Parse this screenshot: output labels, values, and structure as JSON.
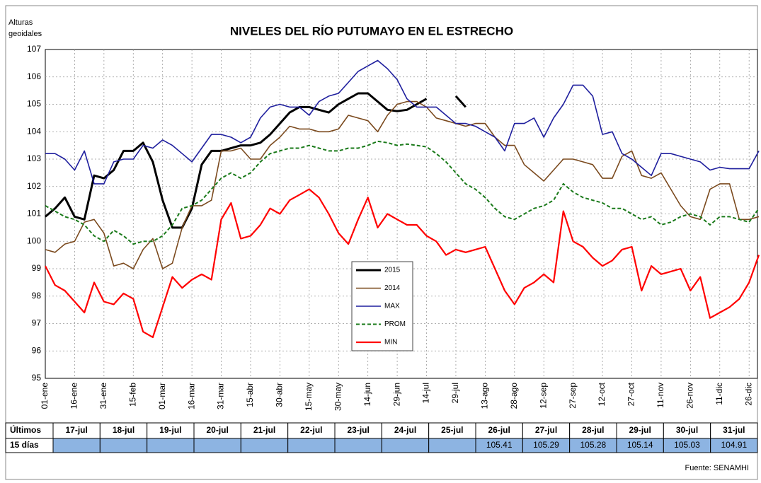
{
  "chart_data": {
    "type": "line",
    "title": "NIVELES DEL RÍO PUTUMAYO EN EL ESTRECHO",
    "ylabel": [
      "Alturas",
      "geoidales"
    ],
    "ylim": [
      95,
      107
    ],
    "yticks": [
      95,
      96,
      97,
      98,
      99,
      100,
      101,
      102,
      103,
      104,
      105,
      106,
      107
    ],
    "grid": true,
    "legend": "center",
    "categories": [
      "01-ene",
      null,
      null,
      "16-ene",
      null,
      null,
      "31-ene",
      null,
      null,
      "15-feb",
      null,
      null,
      "01-mar",
      null,
      null,
      "16-mar",
      null,
      null,
      "31-mar",
      null,
      null,
      "15-abr",
      null,
      null,
      "30-abr",
      null,
      null,
      "15-may",
      null,
      null,
      "30-may",
      null,
      null,
      "14-jun",
      null,
      null,
      "29-jun",
      null,
      null,
      "14-jul",
      null,
      null,
      "29-jul",
      null,
      null,
      "13-ago",
      null,
      null,
      "28-ago",
      null,
      null,
      "12-sep",
      null,
      null,
      "27-sep",
      null,
      null,
      "12-oct",
      null,
      null,
      "27-oct",
      null,
      null,
      "11-nov",
      null,
      null,
      "26-nov",
      null,
      null,
      "11-dic",
      null,
      null,
      "26-dic",
      null
    ],
    "series": [
      {
        "name": "2015",
        "color": "#000000",
        "style": "solid",
        "values": [
          100.9,
          101.2,
          101.6,
          100.9,
          100.8,
          102.4,
          102.3,
          102.6,
          103.3,
          103.3,
          103.6,
          102.9,
          101.5,
          100.5,
          100.5,
          101.2,
          102.8,
          103.3,
          103.3,
          103.4,
          103.5,
          103.5,
          103.6,
          103.9,
          104.3,
          104.7,
          104.9,
          104.9,
          104.8,
          104.7,
          105.0,
          105.2,
          105.4,
          105.4,
          105.1,
          104.8,
          104.75,
          104.8,
          105.0,
          105.2,
          null,
          null,
          105.3,
          104.9,
          null,
          null,
          null,
          null,
          null,
          null,
          null,
          null,
          null,
          null,
          null,
          null,
          null,
          null,
          null,
          null,
          null,
          null,
          null,
          null,
          null,
          null,
          null,
          null,
          null,
          null,
          null,
          null,
          null,
          null
        ]
      },
      {
        "name": "2014",
        "color": "#7b4a1e",
        "style": "solid",
        "values": [
          99.7,
          99.6,
          99.9,
          100.0,
          100.7,
          100.8,
          100.3,
          99.1,
          99.2,
          99.0,
          99.7,
          100.1,
          99.0,
          99.2,
          100.5,
          101.3,
          101.3,
          101.5,
          103.3,
          103.3,
          103.4,
          103.0,
          103.0,
          103.5,
          103.8,
          104.2,
          104.1,
          104.1,
          104.0,
          104.0,
          104.1,
          104.6,
          104.5,
          104.4,
          104.0,
          104.6,
          105.0,
          105.1,
          105.1,
          104.9,
          104.5,
          104.4,
          104.3,
          104.2,
          104.3,
          104.3,
          103.8,
          103.5,
          103.5,
          102.8,
          102.5,
          102.2,
          102.6,
          103.0,
          103.0,
          102.9,
          102.8,
          102.3,
          102.3,
          103.1,
          103.3,
          102.4,
          102.3,
          102.5,
          101.9,
          101.3,
          100.9,
          100.8,
          101.9,
          102.1,
          102.1,
          100.8,
          100.8,
          100.9
        ]
      },
      {
        "name": "MAX",
        "color": "#1f1f9e",
        "style": "solid",
        "values": [
          103.2,
          103.2,
          103.0,
          102.6,
          103.3,
          102.1,
          102.1,
          102.9,
          103.0,
          103.0,
          103.5,
          103.4,
          103.7,
          103.5,
          103.2,
          102.9,
          103.4,
          103.9,
          103.9,
          103.8,
          103.6,
          103.8,
          104.5,
          104.9,
          105.0,
          104.9,
          104.9,
          104.6,
          105.1,
          105.3,
          105.4,
          105.8,
          106.2,
          106.4,
          106.6,
          106.3,
          105.9,
          105.2,
          104.9,
          104.9,
          104.9,
          104.6,
          104.3,
          104.3,
          104.2,
          104.0,
          103.8,
          103.3,
          104.3,
          104.3,
          104.5,
          103.8,
          104.5,
          105.0,
          105.7,
          105.7,
          105.3,
          103.9,
          104.0,
          103.2,
          103.0,
          102.7,
          102.4,
          103.2,
          103.2,
          103.1,
          103.0,
          102.9,
          102.6,
          102.7,
          102.65,
          102.65,
          102.65,
          103.3
        ]
      },
      {
        "name": "PROM",
        "color": "#1a7a1a",
        "style": "dashed",
        "values": [
          101.3,
          101.1,
          100.9,
          100.8,
          100.6,
          100.2,
          100.0,
          100.4,
          100.2,
          99.9,
          100.0,
          100.0,
          100.2,
          100.6,
          101.2,
          101.3,
          101.5,
          101.9,
          102.3,
          102.5,
          102.3,
          102.5,
          102.9,
          103.2,
          103.3,
          103.4,
          103.4,
          103.5,
          103.4,
          103.3,
          103.3,
          103.4,
          103.4,
          103.5,
          103.65,
          103.6,
          103.5,
          103.55,
          103.5,
          103.45,
          103.2,
          102.9,
          102.5,
          102.1,
          101.9,
          101.6,
          101.2,
          100.9,
          100.8,
          101.0,
          101.2,
          101.3,
          101.5,
          102.1,
          101.8,
          101.6,
          101.5,
          101.4,
          101.2,
          101.2,
          101.0,
          100.8,
          100.9,
          100.6,
          100.7,
          100.9,
          101.0,
          100.9,
          100.6,
          100.9,
          100.9,
          100.8,
          100.7,
          101.2
        ]
      },
      {
        "name": "MIN",
        "color": "#ff0000",
        "style": "solid",
        "values": [
          99.1,
          98.4,
          98.2,
          97.8,
          97.4,
          98.5,
          97.8,
          97.7,
          98.1,
          97.9,
          96.7,
          96.5,
          97.6,
          98.7,
          98.3,
          98.6,
          98.8,
          98.6,
          100.8,
          101.4,
          100.1,
          100.2,
          100.6,
          101.2,
          101.0,
          101.5,
          101.7,
          101.9,
          101.6,
          101.0,
          100.3,
          99.9,
          100.8,
          101.6,
          100.5,
          101.0,
          100.8,
          100.6,
          100.6,
          100.2,
          100.0,
          99.5,
          99.7,
          99.6,
          99.7,
          99.8,
          99.0,
          98.2,
          97.7,
          98.3,
          98.5,
          98.8,
          98.5,
          101.1,
          100.0,
          99.8,
          99.4,
          99.1,
          99.3,
          99.7,
          99.8,
          98.2,
          99.1,
          98.8,
          98.9,
          99.0,
          98.2,
          98.7,
          97.2,
          97.4,
          97.6,
          97.9,
          98.5,
          99.5
        ]
      }
    ]
  },
  "table": {
    "row1_label": "Últimos",
    "row2_label": "15 días",
    "dates": [
      "17-jul",
      "18-jul",
      "19-jul",
      "20-jul",
      "21-jul",
      "22-jul",
      "23-jul",
      "24-jul",
      "25-jul",
      "26-jul",
      "27-jul",
      "28-jul",
      "29-jul",
      "30-jul",
      "31-jul"
    ],
    "values": [
      null,
      null,
      null,
      null,
      null,
      null,
      null,
      null,
      null,
      105.41,
      105.29,
      105.28,
      105.14,
      105.03,
      104.91
    ]
  },
  "source": "Fuente: SENAMHI"
}
